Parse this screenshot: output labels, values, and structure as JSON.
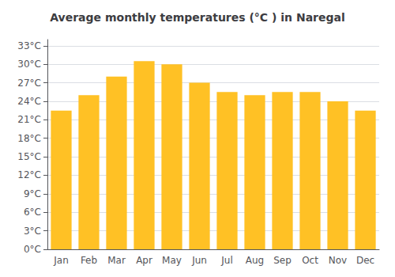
{
  "chart_data": {
    "type": "bar",
    "title": "Average monthly temperatures (°C ) in Naregal",
    "categories": [
      "Jan",
      "Feb",
      "Mar",
      "Apr",
      "May",
      "Jun",
      "Jul",
      "Aug",
      "Sep",
      "Oct",
      "Nov",
      "Dec"
    ],
    "values": [
      22.5,
      25.0,
      28.0,
      30.5,
      30.0,
      27.0,
      25.5,
      25.0,
      25.5,
      25.5,
      24.0,
      22.5
    ],
    "color": "#FFC125",
    "ylim": [
      0,
      34
    ],
    "yticks": [
      {
        "value": 0,
        "label": "0°C"
      },
      {
        "value": 3,
        "label": "3°C"
      },
      {
        "value": 6,
        "label": "6°C"
      },
      {
        "value": 9,
        "label": "9°C"
      },
      {
        "value": 12,
        "label": "12°C"
      },
      {
        "value": 15,
        "label": "15°C"
      },
      {
        "value": 18,
        "label": "18°C"
      },
      {
        "value": 21,
        "label": "21°C"
      },
      {
        "value": 24,
        "label": "24°C"
      },
      {
        "value": 27,
        "label": "27°C"
      },
      {
        "value": 30,
        "label": "30°C"
      },
      {
        "value": 33,
        "label": "33°C"
      }
    ],
    "grid": true
  }
}
